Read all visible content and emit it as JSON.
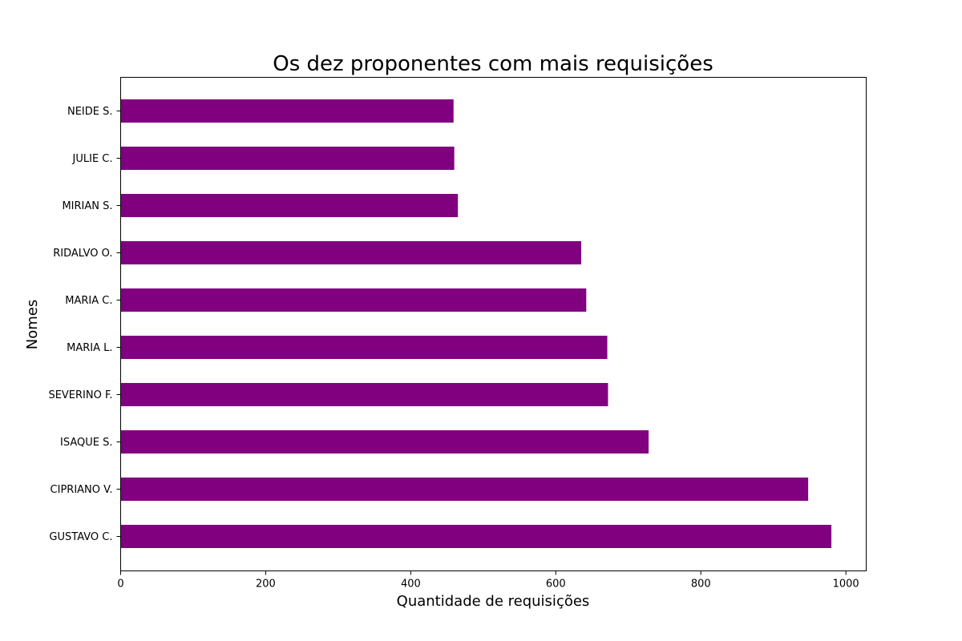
{
  "chart_data": {
    "type": "bar",
    "orientation": "horizontal",
    "title": "Os dez proponentes com mais requisições",
    "xlabel": "Quantidade de requisições",
    "ylabel": "Nomes",
    "xlim": [
      0,
      1028
    ],
    "x_ticks": [
      0,
      200,
      400,
      600,
      800,
      1000
    ],
    "grid": false,
    "legend": "none",
    "bar_color": "#800080",
    "categories": [
      "GUSTAVO C.",
      "CIPRIANO V.",
      "ISAQUE S.",
      "SEVERINO F.",
      "MARIA L.",
      "MARIA C.",
      "RIDALVO O.",
      "MIRIAN S.",
      "JULIE C.",
      "NEIDE S."
    ],
    "values": [
      980,
      948,
      728,
      672,
      671,
      642,
      635,
      465,
      460,
      459
    ]
  }
}
